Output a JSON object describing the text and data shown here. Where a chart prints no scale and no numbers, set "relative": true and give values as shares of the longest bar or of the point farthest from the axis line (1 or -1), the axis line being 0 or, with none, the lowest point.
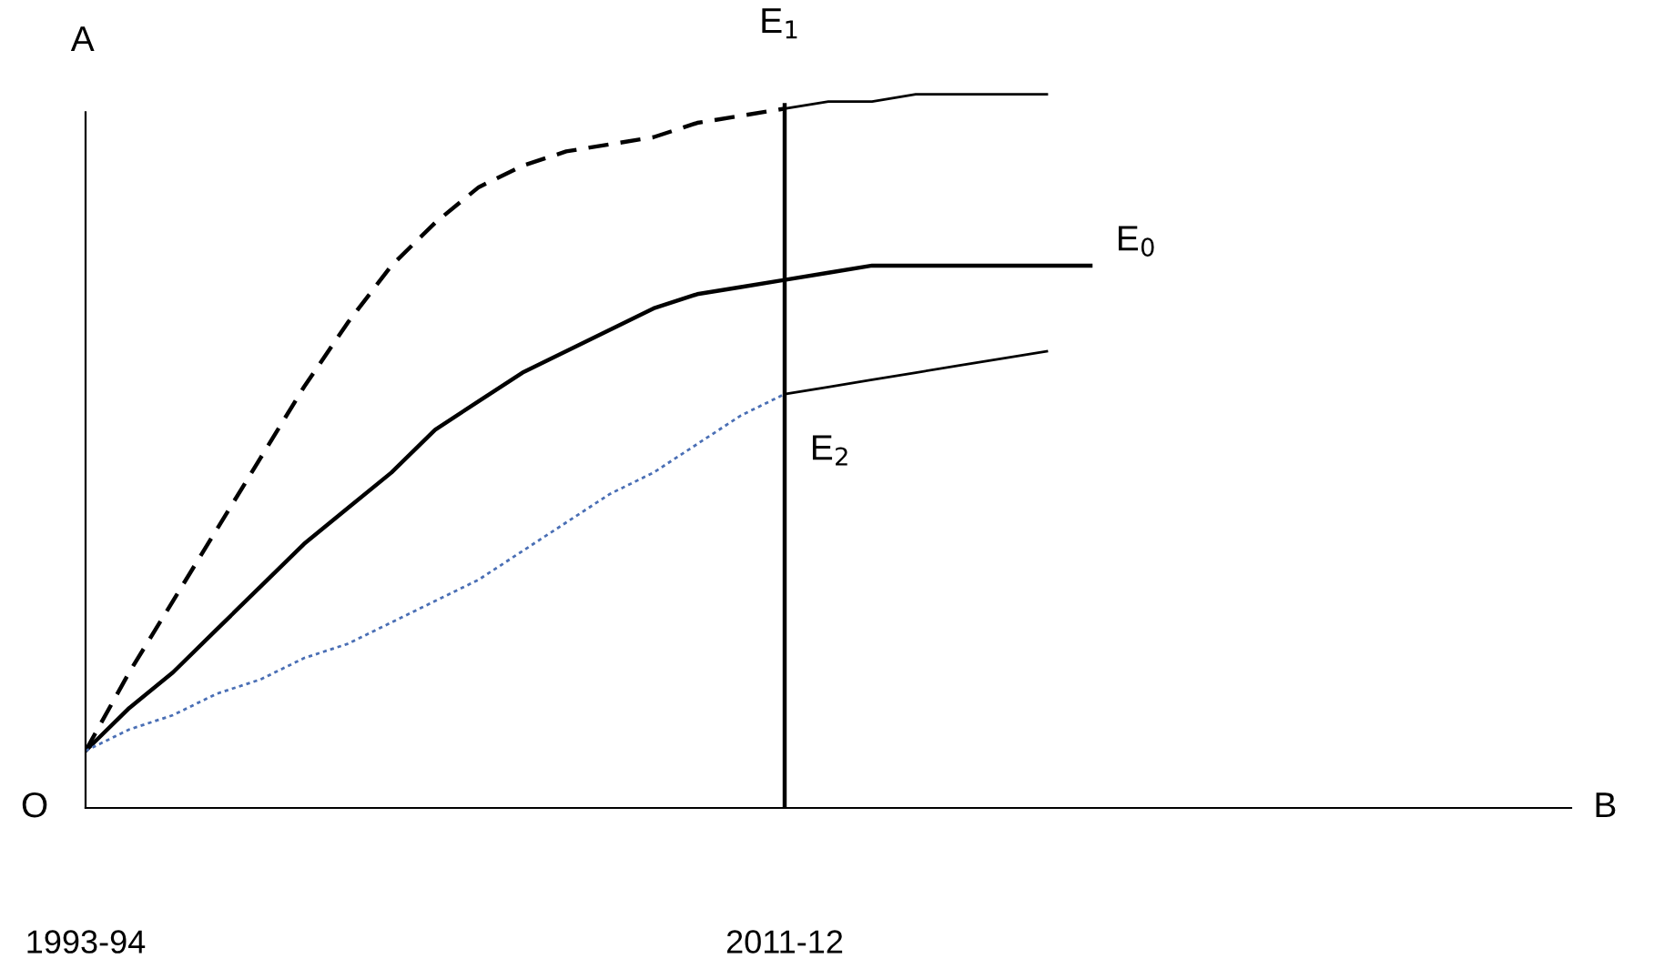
{
  "chart_data": {
    "type": "line",
    "relative": true,
    "xlabel": "B",
    "ylabel": "A",
    "annotations": [
      "O"
    ],
    "categories": [
      "1993-94",
      null,
      null,
      null,
      null,
      null,
      null,
      null,
      null,
      null,
      null,
      null,
      null,
      null,
      null,
      null,
      "2011-12",
      null,
      null,
      null,
      null,
      null,
      null,
      null,
      null,
      null,
      null,
      null,
      null,
      null,
      null,
      null,
      null,
      null,
      null
    ],
    "ref_lines": [
      {
        "axis": "x",
        "value": "2011-12",
        "color": "#000000",
        "line_style": "solid"
      }
    ],
    "marker": "none",
    "grid": false,
    "legend": false,
    "series": [
      {
        "name": "E$_{1}$",
        "color": "#000000",
        "line_style": "dashed",
        "values": [
          0.08,
          0.19,
          0.29,
          0.39,
          0.49,
          0.59,
          0.68,
          0.76,
          0.82,
          0.87,
          0.9,
          0.92,
          0.93,
          0.94,
          0.96,
          0.97,
          0.98,
          null,
          null,
          null,
          null,
          null,
          null,
          null,
          null,
          null,
          null,
          null,
          null,
          null,
          null,
          null,
          null,
          null,
          null
        ]
      },
      {
        "color": "#000000",
        "line_style": "solid",
        "values": [
          null,
          null,
          null,
          null,
          null,
          null,
          null,
          null,
          null,
          null,
          null,
          null,
          null,
          null,
          null,
          null,
          0.98,
          0.99,
          0.99,
          1.0,
          1.0,
          1.0,
          1.0,
          null,
          null,
          null,
          null,
          null,
          null,
          null,
          null,
          null,
          null,
          null,
          null
        ]
      },
      {
        "name": "E$_{0}$",
        "color": "#000000",
        "line_style": "solid",
        "values": [
          0.08,
          0.14,
          0.19,
          0.25,
          0.31,
          0.37,
          0.42,
          0.47,
          0.53,
          0.57,
          0.61,
          0.64,
          0.67,
          0.7,
          0.72,
          0.73,
          0.74,
          0.75,
          0.76,
          0.76,
          0.76,
          0.76,
          0.76,
          0.76,
          null,
          null,
          null,
          null,
          null,
          null,
          null,
          null,
          null,
          null,
          null
        ]
      },
      {
        "name": "E$_{2}$",
        "color": "#4a6fb5",
        "line_style": "dotted",
        "values": [
          0.08,
          0.11,
          0.13,
          0.16,
          0.18,
          0.21,
          0.23,
          0.26,
          0.29,
          0.32,
          0.36,
          0.4,
          0.44,
          0.47,
          0.51,
          0.55,
          0.58,
          null,
          null,
          null,
          null,
          null,
          null,
          null,
          null,
          null,
          null,
          null,
          null,
          null,
          null,
          null,
          null,
          null,
          null
        ]
      },
      {
        "color": "#000000",
        "line_style": "solid",
        "values": [
          null,
          null,
          null,
          null,
          null,
          null,
          null,
          null,
          null,
          null,
          null,
          null,
          null,
          null,
          null,
          null,
          0.58,
          0.59,
          0.6,
          0.61,
          0.62,
          0.63,
          0.64,
          null,
          null,
          null,
          null,
          null,
          null,
          null,
          null,
          null,
          null,
          null,
          null
        ]
      }
    ]
  }
}
